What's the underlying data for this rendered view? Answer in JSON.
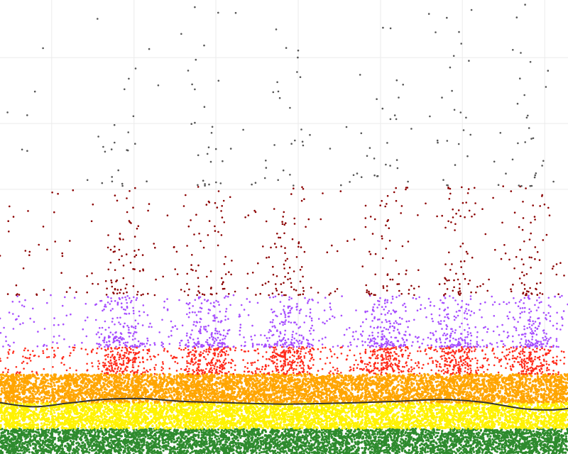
{
  "chart_data": {
    "type": "scatter",
    "title": "",
    "xlabel": "",
    "ylabel": "",
    "xlim": [
      0,
      100
    ],
    "ylim": [
      0,
      100
    ],
    "grid": true,
    "legend": "none",
    "x_gridlines": [
      9.1,
      23.6,
      38.0,
      52.5,
      67.0,
      81.4,
      95.9
    ],
    "y_gridlines": [
      58.3,
      72.8,
      87.3
    ],
    "bands": [
      {
        "name": "band-green",
        "color": "#2e8b2e",
        "y_range": [
          0,
          5.6
        ],
        "density": 1.0
      },
      {
        "name": "band-yellow",
        "color": "#fff200",
        "y_range": [
          5.6,
          11.3
        ],
        "density": 1.0
      },
      {
        "name": "band-orange",
        "color": "#ffa500",
        "y_range": [
          11.3,
          17.6
        ],
        "density": 1.0
      },
      {
        "name": "band-red",
        "color": "#ff2a1a",
        "y_range": [
          17.6,
          23.6
        ],
        "density": 0.55
      },
      {
        "name": "band-purple",
        "color": "#a64dff",
        "y_range": [
          23.6,
          35.0
        ],
        "density": 0.25
      },
      {
        "name": "band-darkred",
        "color": "#8b0000",
        "y_range": [
          35.0,
          59.0
        ],
        "density": 0.05
      },
      {
        "name": "band-gray",
        "color": "#555555",
        "y_range": [
          59.0,
          100
        ],
        "density": 0.01
      }
    ],
    "peaks_x": [
      21.5,
      36.5,
      51.0,
      68.0,
      80.5,
      93.5
    ],
    "trend_line": {
      "color": "#333333",
      "points": [
        {
          "x": 0,
          "y": 11.3
        },
        {
          "x": 6,
          "y": 10.4
        },
        {
          "x": 12,
          "y": 11.2
        },
        {
          "x": 18,
          "y": 12.0
        },
        {
          "x": 25,
          "y": 12.2
        },
        {
          "x": 32,
          "y": 11.6
        },
        {
          "x": 40,
          "y": 11.3
        },
        {
          "x": 50,
          "y": 11.0
        },
        {
          "x": 60,
          "y": 11.2
        },
        {
          "x": 70,
          "y": 11.6
        },
        {
          "x": 78,
          "y": 12.0
        },
        {
          "x": 85,
          "y": 11.4
        },
        {
          "x": 92,
          "y": 10.0
        },
        {
          "x": 97,
          "y": 9.7
        },
        {
          "x": 100,
          "y": 10.0
        }
      ]
    }
  }
}
